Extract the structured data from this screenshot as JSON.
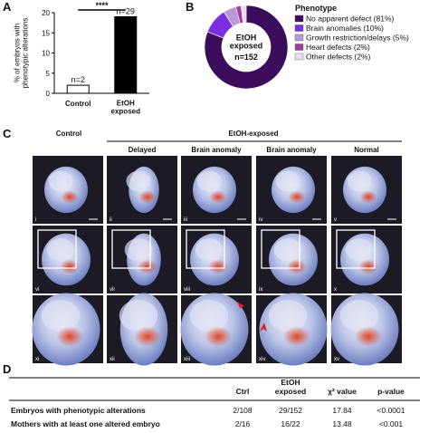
{
  "panel_labels": [
    "A",
    "B",
    "C",
    "D"
  ],
  "chart_data": [
    {
      "type": "bar",
      "y_label": "% of embryos with\nphenotypic alterations",
      "categories": [
        "Control",
        "EtOH\nexposed"
      ],
      "values": [
        2,
        19
      ],
      "colors": [
        "#ffffff",
        "#000000"
      ],
      "ylim": [
        0,
        20
      ],
      "yticks": [
        0,
        5,
        10,
        15,
        20
      ],
      "annotations": [
        "n=2",
        "n=29"
      ],
      "significance": "****"
    },
    {
      "type": "pie",
      "center_text": "EtOH\nexposed",
      "center_subtext": "n=152",
      "legend_title": "Phenotype",
      "categories": [
        "No apparent defect (81%)",
        "Brain anomalies (10%)",
        "Growth restriction/delays (5%)",
        "Heart defects (2%)",
        "Other defects (2%)"
      ],
      "values": [
        81,
        10,
        5,
        2,
        2
      ],
      "colors": [
        "#3b0b5c",
        "#7a2ee0",
        "#b59ad6",
        "#9c3f9c",
        "#ecdcf2"
      ]
    }
  ],
  "panel_c": {
    "group_control": "Control",
    "group_etoh": "EtOH-exposed",
    "columns": [
      "Delayed",
      "Brain anomaly",
      "Brain anomaly",
      "Normal"
    ],
    "image_labels": [
      "i",
      "ii",
      "iii",
      "iv",
      "v",
      "vi",
      "vii",
      "viii",
      "ix",
      "x",
      "xi",
      "xii",
      "xiii",
      "xiv",
      "xv"
    ]
  },
  "table": {
    "header": [
      "Ctrl",
      "EtOH\nexposed",
      "χ² value",
      "p-value"
    ],
    "rows": [
      [
        "Embryos with phenotypic alterations",
        "2/108",
        "29/152",
        "17.84",
        "<0.0001"
      ],
      [
        "Mothers with at least one altered embryo",
        "2/16",
        "16/22",
        "13.48",
        "<0.001"
      ]
    ]
  }
}
